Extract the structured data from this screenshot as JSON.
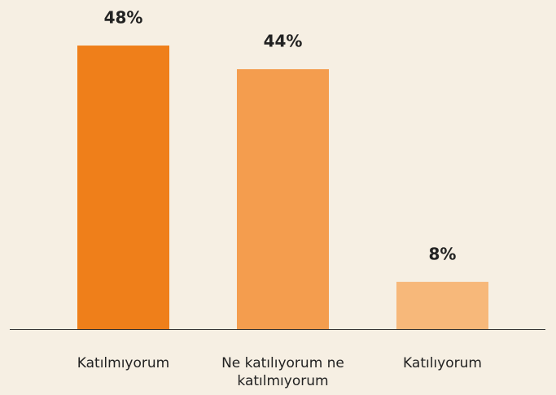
{
  "chart_data": {
    "type": "bar",
    "categories": [
      "Katılmıyorum",
      "Ne katılıyorum ne katılmıyorum",
      "Katılıyorum"
    ],
    "values": [
      48,
      44,
      8
    ],
    "value_labels": [
      "48%",
      "44%",
      "8%"
    ],
    "colors": [
      "#ef7f1a",
      "#f49d4e",
      "#f7b87a"
    ]
  }
}
